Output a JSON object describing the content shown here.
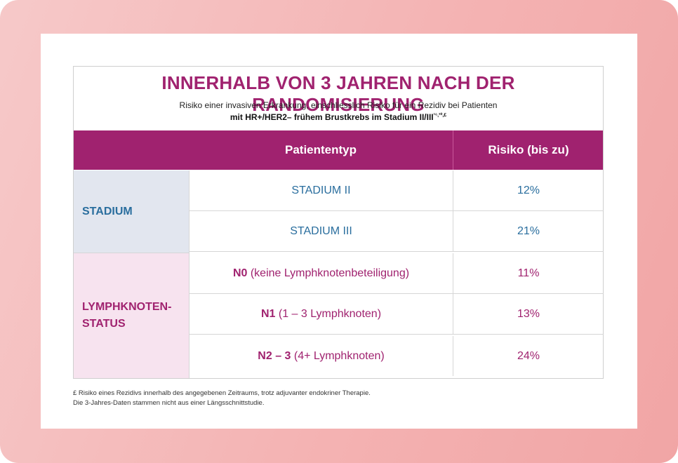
{
  "title": "INNERHALB VON 3 JAHREN NACH DER RANDOMISIERUNG",
  "subtitle_line1": "Risiko einer invasiven Erkrankung, einschliesslich Risiko für ein Rezidiv bei Patienten",
  "subtitle_line2": "mit HR+/HER2– frühem Brustkrebs im Stadium II/III",
  "subtitle_ref": "¹⁶,²⁰,£",
  "header": {
    "col_type": "Patiententyp",
    "col_risk": "Risiko (bis zu)"
  },
  "groups": {
    "stadium": "STADIUM",
    "lymph_line1": "LYMPHKNOTEN-",
    "lymph_line2": "STATUS"
  },
  "rows": [
    {
      "bold": "",
      "text": "STADIUM II",
      "risk": "12%"
    },
    {
      "bold": "",
      "text": "STADIUM III",
      "risk": "21%"
    },
    {
      "bold": "N0",
      "text": " (keine Lymphknotenbeteiligung)",
      "risk": "11%"
    },
    {
      "bold": "N1",
      "text": " (1 – 3 Lymphknoten)",
      "risk": "13%"
    },
    {
      "bold": "N2 – 3",
      "text": " (4+ Lymphknoten)",
      "risk": "24%"
    }
  ],
  "footnote_line1": "£ Risiko eines Rezidivs innerhalb des angegebenen Zeitraums, trotz adjuvanter endokriner Therapie.",
  "footnote_line2": "Die 3-Jahres-Daten stammen nicht aus einer Längsschnittstudie.",
  "colors": {
    "magenta": "#a0226f",
    "blue": "#2a6e9e",
    "stadium_bg": "#e2e6ef",
    "lymph_bg": "#f7e3ef"
  }
}
